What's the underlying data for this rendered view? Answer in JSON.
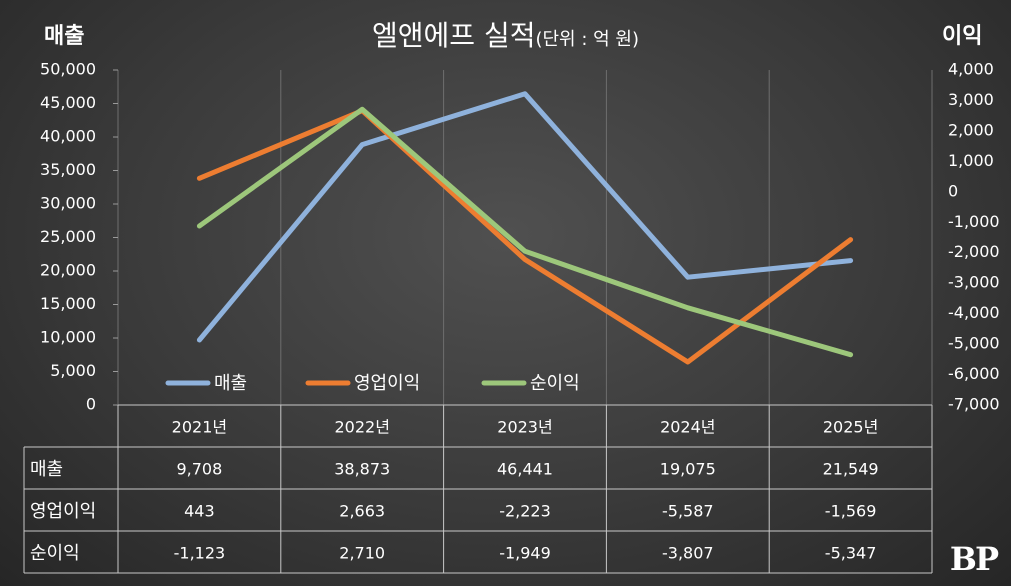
{
  "chart_data": {
    "type": "line",
    "title": "엘앤에프 실적",
    "subtitle": "(단위 : 억 원)",
    "ylabel_left": "매출",
    "ylabel_right": "이익",
    "categories": [
      "2021년",
      "2022년",
      "2023년",
      "2024년",
      "2025년"
    ],
    "y_left": {
      "min": 0,
      "max": 50000,
      "ticks": [
        "0",
        "5,000",
        "10,000",
        "15,000",
        "20,000",
        "25,000",
        "30,000",
        "35,000",
        "40,000",
        "45,000",
        "50,000"
      ]
    },
    "y_right": {
      "min": -7000,
      "max": 4000,
      "ticks": [
        "-7,000",
        "-6,000",
        "-5,000",
        "-4,000",
        "-3,000",
        "-2,000",
        "-1,000",
        "0",
        "1,000",
        "2,000",
        "3,000",
        "4,000"
      ]
    },
    "series": [
      {
        "name": "매출",
        "axis": "left",
        "color": "#8fb2dc",
        "values": [
          9708,
          38873,
          46441,
          19075,
          21549
        ],
        "display": [
          "9,708",
          "38,873",
          "46,441",
          "19,075",
          "21,549"
        ]
      },
      {
        "name": "영업이익",
        "axis": "right",
        "color": "#ed7d31",
        "values": [
          443,
          2663,
          -2223,
          -5587,
          -1569
        ],
        "display": [
          "443",
          "2,663",
          "-2,223",
          "-5,587",
          "-1,569"
        ]
      },
      {
        "name": "순이익",
        "axis": "right",
        "color": "#9dc77b",
        "values": [
          -1123,
          2710,
          -1949,
          -3807,
          -5347
        ],
        "display": [
          "-1,123",
          "2,710",
          "-1,949",
          "-3,807",
          "-5,347"
        ]
      }
    ],
    "legend_position": "bottom-left",
    "grid": true
  },
  "watermark": "BP"
}
